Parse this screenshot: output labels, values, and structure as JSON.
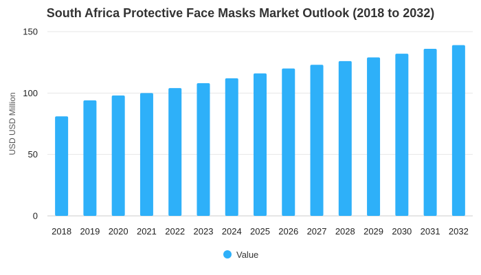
{
  "chart_data": {
    "type": "bar",
    "title": "South Africa Protective Face Masks Market Outlook (2018 to 2032)",
    "xlabel": "",
    "ylabel": "USD USD Million",
    "categories": [
      "2018",
      "2019",
      "2020",
      "2021",
      "2022",
      "2023",
      "2024",
      "2025",
      "2026",
      "2027",
      "2028",
      "2029",
      "2030",
      "2031",
      "2032"
    ],
    "series": [
      {
        "name": "Value",
        "values": [
          81,
          94,
          98,
          100,
          104,
          108,
          112,
          116,
          120,
          123,
          126,
          129,
          132,
          136,
          139
        ]
      }
    ],
    "ylim": [
      0,
      150
    ],
    "yticks": [
      0,
      50,
      100,
      150
    ],
    "grid": true,
    "legend_position": "bottom-center",
    "colors": {
      "bar": "#2eb0f9",
      "grid": "#e6e6e6",
      "title": "#333333"
    }
  }
}
